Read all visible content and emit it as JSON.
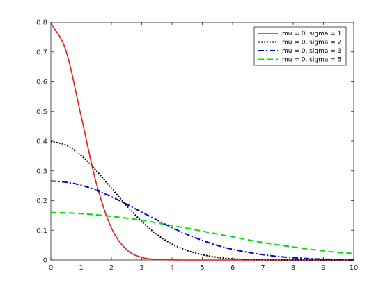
{
  "chart_data": {
    "type": "line",
    "title": "",
    "xlabel": "",
    "ylabel": "",
    "xlim": [
      0,
      10
    ],
    "ylim": [
      0,
      0.8
    ],
    "xticks": [
      "0",
      "1",
      "2",
      "3",
      "4",
      "5",
      "6",
      "7",
      "8",
      "9",
      "10"
    ],
    "yticks": [
      "0",
      "0.1",
      "0.2",
      "0.3",
      "0.4",
      "0.5",
      "0.6",
      "0.7",
      "0.8"
    ],
    "grid": false,
    "legend_position": "top-right",
    "series": [
      {
        "name": "mu = 0, sigma = 1",
        "color": "#e41a1c",
        "style": "solid",
        "x": [
          0,
          0.5,
          1,
          1.5,
          2,
          2.5,
          3,
          3.5,
          4,
          4.5,
          5,
          5.5,
          6,
          6.5,
          7,
          7.5,
          8,
          8.5,
          9,
          9.5,
          10
        ],
        "y": [
          0.798,
          0.704,
          0.484,
          0.259,
          0.108,
          0.035,
          0.009,
          0.002,
          0.0003,
          0,
          0,
          0,
          0,
          0,
          0,
          0,
          0,
          0,
          0,
          0,
          0
        ]
      },
      {
        "name": "mu = 0, sigma = 2",
        "color": "#000000",
        "style": "dotted",
        "x": [
          0,
          0.5,
          1,
          1.5,
          2,
          2.5,
          3,
          3.5,
          4,
          4.5,
          5,
          5.5,
          6,
          6.5,
          7,
          7.5,
          8,
          8.5,
          9,
          9.5,
          10
        ],
        "y": [
          0.399,
          0.387,
          0.352,
          0.301,
          0.242,
          0.183,
          0.13,
          0.086,
          0.054,
          0.032,
          0.018,
          0.009,
          0.004,
          0.002,
          0.001,
          0.0004,
          0.0001,
          0,
          0,
          0,
          0
        ]
      },
      {
        "name": "mu = 0, sigma = 3",
        "color": "#0000cc",
        "style": "dashdot",
        "x": [
          0,
          0.5,
          1,
          1.5,
          2,
          2.5,
          3,
          3.5,
          4,
          4.5,
          5,
          5.5,
          6,
          6.5,
          7,
          7.5,
          8,
          8.5,
          9,
          9.5,
          10
        ],
        "y": [
          0.266,
          0.262,
          0.252,
          0.235,
          0.213,
          0.188,
          0.161,
          0.135,
          0.109,
          0.086,
          0.066,
          0.049,
          0.036,
          0.026,
          0.018,
          0.012,
          0.008,
          0.005,
          0.003,
          0.002,
          0.001
        ]
      },
      {
        "name": "mu = 0, sigma = 5",
        "color": "#00dd00",
        "style": "dashed",
        "x": [
          0,
          0.5,
          1,
          1.5,
          2,
          2.5,
          3,
          3.5,
          4,
          4.5,
          5,
          5.5,
          6,
          6.5,
          7,
          7.5,
          8,
          8.5,
          9,
          9.5,
          10
        ],
        "y": [
          0.16,
          0.159,
          0.156,
          0.152,
          0.147,
          0.141,
          0.134,
          0.125,
          0.116,
          0.107,
          0.097,
          0.087,
          0.078,
          0.068,
          0.059,
          0.051,
          0.044,
          0.037,
          0.031,
          0.025,
          0.022
        ]
      }
    ]
  }
}
